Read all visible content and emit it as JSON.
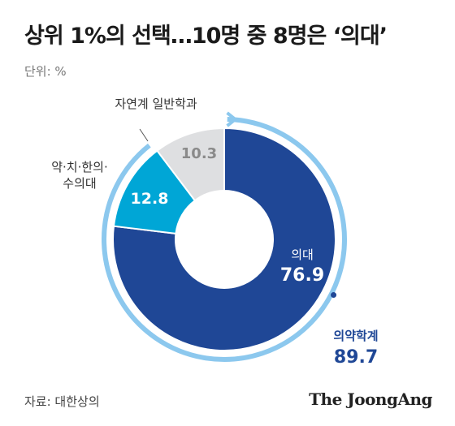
{
  "header": {
    "title": "상위 1%의 선택…10명 중 8명은 ‘의대’",
    "unit": "단위: %"
  },
  "footer": {
    "source": "자료: 대한상의",
    "logo": "The JoongAng"
  },
  "colors": {
    "medical": "#1f4796",
    "pharma": "#00a6d6",
    "natural": "#dedfe1",
    "outer_arc": "#8cc8ee",
    "label_dark": "#1f4796"
  },
  "chart_data": {
    "type": "pie",
    "style": "donut",
    "unit": "%",
    "slices": [
      {
        "label": "의대",
        "value": 76.9,
        "color": "#1f4796"
      },
      {
        "label": "약·치·한의·수의대",
        "value": 12.8,
        "color": "#00a6d6"
      },
      {
        "label": "자연계 일반학과",
        "value": 10.3,
        "color": "#dedfe1"
      }
    ],
    "outer_arc": {
      "label": "의약학계",
      "value": 89.7,
      "color": "#8cc8ee"
    }
  }
}
